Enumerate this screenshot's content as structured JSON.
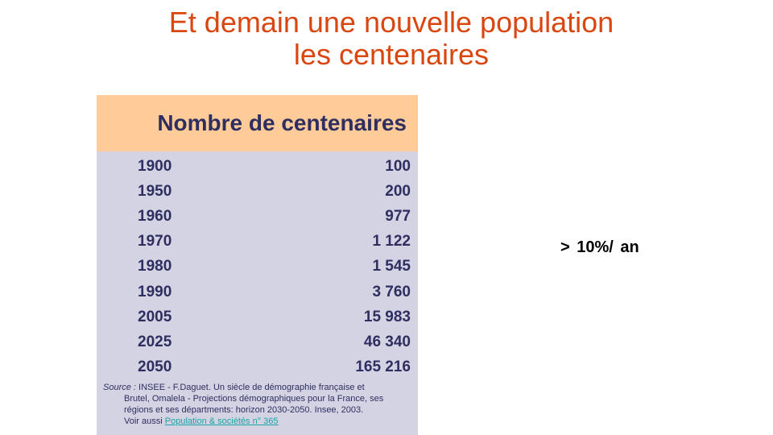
{
  "slide": {
    "title_line1": "Et demain une nouvelle population",
    "title_line2": "les centenaires",
    "note": "> 10%/ an"
  },
  "table": {
    "header": "Nombre de centenaires",
    "rows": [
      {
        "year": "1900",
        "count": "100"
      },
      {
        "year": "1950",
        "count": "200"
      },
      {
        "year": "1960",
        "count": "977"
      },
      {
        "year": "1970",
        "count": "1 122"
      },
      {
        "year": "1980",
        "count": "1 545"
      },
      {
        "year": "1990",
        "count": "3 760"
      },
      {
        "year": "2005",
        "count": "15 983"
      },
      {
        "year": "2025",
        "count": "46 340"
      },
      {
        "year": "2050",
        "count": "165 216"
      }
    ]
  },
  "source": {
    "lead": "Source :",
    "line1": " INSEE - F.Daguet. Un siècle de démographie française et",
    "line2": "Brutel, Omalela - Projections démographiques pour la France, ses",
    "line3": "régions et ses départments: horizon 2030-2050. Insee, 2003.",
    "see_also_prefix": "Voir aussi ",
    "link_text": "Population & sociétés n°  365"
  },
  "colors": {
    "title": "#d9460f",
    "header_bg": "#ffcc99",
    "table_bg": "#d3d3e3",
    "table_text": "#2e2e60",
    "link": "#1aa3a3"
  }
}
